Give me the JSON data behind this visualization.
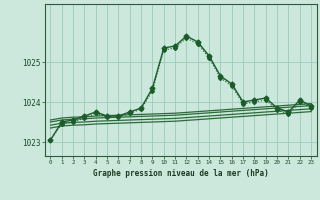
{
  "title": "Graphe pression niveau de la mer (hPa)",
  "background_color": "#cce8dc",
  "grid_color": "#99ccbb",
  "line_color_main": "#1a5c2a",
  "line_color_extra": "#2d6b3a",
  "xlim": [
    -0.5,
    23.5
  ],
  "ylim": [
    1022.65,
    1026.45
  ],
  "yticks": [
    1023,
    1024,
    1025
  ],
  "xticks": [
    0,
    1,
    2,
    3,
    4,
    5,
    6,
    7,
    8,
    9,
    10,
    11,
    12,
    13,
    14,
    15,
    16,
    17,
    18,
    19,
    20,
    21,
    22,
    23
  ],
  "main_series": [
    1023.05,
    1023.5,
    1023.55,
    1023.65,
    1023.75,
    1023.65,
    1023.65,
    1023.75,
    1023.85,
    1024.35,
    1025.35,
    1025.4,
    1025.65,
    1025.5,
    1025.15,
    1024.65,
    1024.45,
    1024.0,
    1024.05,
    1024.1,
    1023.85,
    1023.75,
    1024.05,
    1023.9
  ],
  "dotted_series": [
    1023.05,
    1023.45,
    1023.5,
    1023.6,
    1023.72,
    1023.62,
    1023.62,
    1023.72,
    1023.82,
    1024.28,
    1025.3,
    1025.35,
    1025.6,
    1025.45,
    1025.1,
    1024.6,
    1024.4,
    1023.95,
    1024.0,
    1024.05,
    1023.8,
    1023.7,
    1024.0,
    1023.85
  ],
  "flat_series1": [
    1023.55,
    1023.6,
    1023.62,
    1023.63,
    1023.65,
    1023.66,
    1023.67,
    1023.68,
    1023.69,
    1023.7,
    1023.71,
    1023.72,
    1023.74,
    1023.76,
    1023.78,
    1023.8,
    1023.82,
    1023.84,
    1023.86,
    1023.88,
    1023.9,
    1023.92,
    1023.94,
    1023.96
  ],
  "flat_series2": [
    1023.5,
    1023.55,
    1023.57,
    1023.58,
    1023.6,
    1023.61,
    1023.62,
    1023.63,
    1023.64,
    1023.65,
    1023.66,
    1023.67,
    1023.69,
    1023.71,
    1023.73,
    1023.75,
    1023.77,
    1023.79,
    1023.81,
    1023.83,
    1023.85,
    1023.87,
    1023.89,
    1023.91
  ],
  "flat_series3": [
    1023.42,
    1023.47,
    1023.49,
    1023.5,
    1023.52,
    1023.53,
    1023.54,
    1023.55,
    1023.56,
    1023.57,
    1023.58,
    1023.59,
    1023.61,
    1023.63,
    1023.65,
    1023.67,
    1023.69,
    1023.71,
    1023.73,
    1023.75,
    1023.77,
    1023.79,
    1023.81,
    1023.83
  ],
  "flat_series4": [
    1023.35,
    1023.4,
    1023.42,
    1023.43,
    1023.45,
    1023.46,
    1023.47,
    1023.48,
    1023.49,
    1023.5,
    1023.51,
    1023.52,
    1023.54,
    1023.56,
    1023.58,
    1023.6,
    1023.62,
    1023.64,
    1023.66,
    1023.68,
    1023.7,
    1023.72,
    1023.74,
    1023.76
  ]
}
